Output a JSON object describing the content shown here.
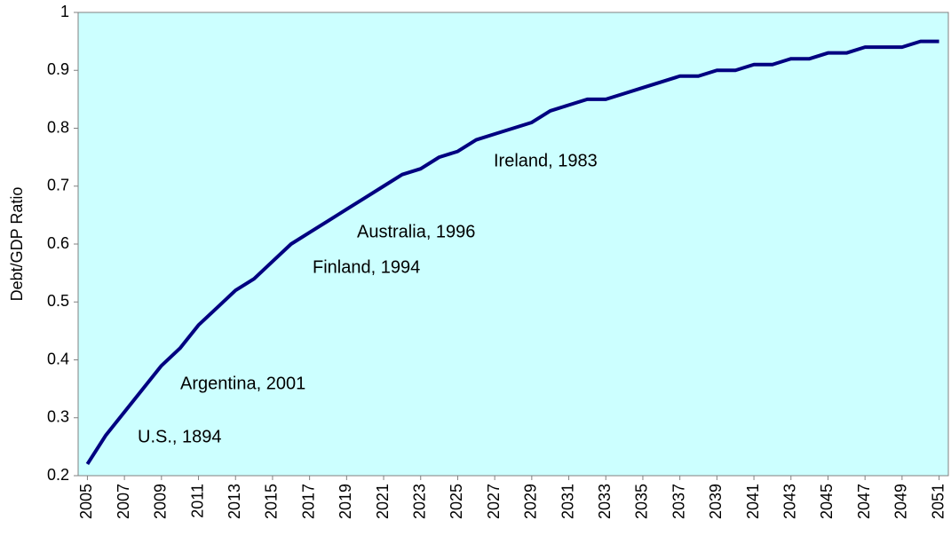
{
  "chart_data": {
    "type": "line",
    "y_label": "Debt/GDP Ratio",
    "categories": [
      "2005",
      null,
      "2007",
      null,
      "2009",
      null,
      "2011",
      null,
      "2013",
      null,
      "2015",
      null,
      "2017",
      null,
      "2019",
      null,
      "2021",
      null,
      "2023",
      null,
      "2025",
      null,
      "2027",
      null,
      "2029",
      null,
      "2031",
      null,
      "2033",
      null,
      "2035",
      null,
      "2037",
      null,
      "2039",
      null,
      "2041",
      null,
      "2043",
      null,
      "2045",
      null,
      "2047",
      null,
      "2049",
      null,
      "2051"
    ],
    "values": [
      0.22,
      0.27,
      0.31,
      0.35,
      0.39,
      0.42,
      0.46,
      0.49,
      0.52,
      0.54,
      0.57,
      0.6,
      0.62,
      0.64,
      0.66,
      0.68,
      0.7,
      0.72,
      0.73,
      0.75,
      0.76,
      0.78,
      0.79,
      0.8,
      0.81,
      0.83,
      0.84,
      0.85,
      0.85,
      0.86,
      0.87,
      0.88,
      0.89,
      0.89,
      0.9,
      0.9,
      0.91,
      0.91,
      0.92,
      0.92,
      0.93,
      0.93,
      0.94,
      0.94,
      0.94,
      0.95,
      0.95
    ],
    "color": "#000080",
    "background": "#ccffff",
    "ylim": [
      0.2,
      1
    ],
    "yticks": [
      0.2,
      0.3,
      0.4,
      0.5,
      0.6,
      0.7,
      0.8,
      0.9,
      1
    ],
    "annotations": [
      "U.S., 1894",
      "Argentina, 2001",
      "Finland, 1994",
      "Australia, 1996",
      "Ireland, 1983"
    ]
  }
}
